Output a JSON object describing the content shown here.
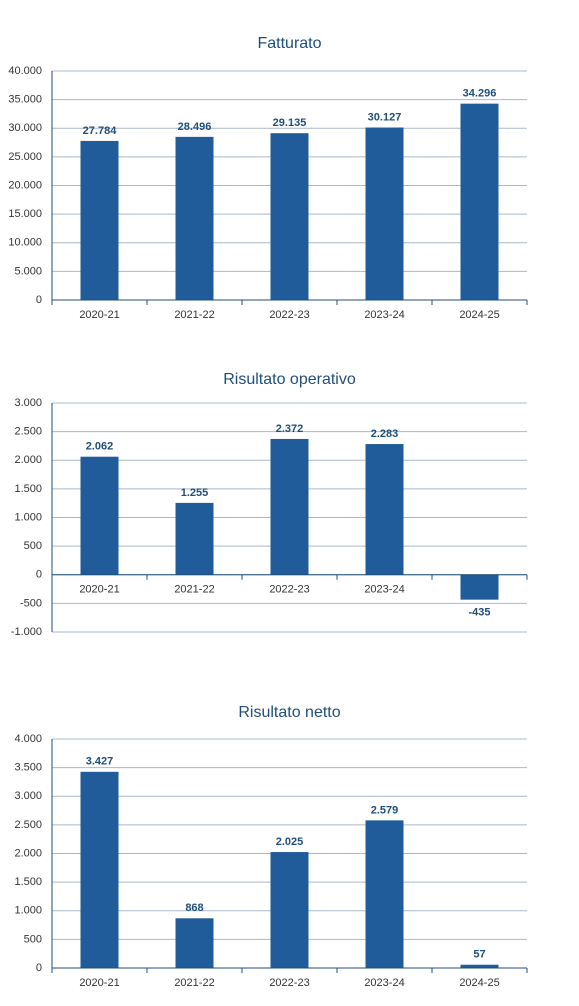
{
  "chart_data": [
    {
      "type": "bar",
      "title": "Fatturato",
      "color": "#1f5c99",
      "grid": true,
      "categories": [
        "2020-21",
        "2021-22",
        "2022-23",
        "2023-24",
        "2024-25"
      ],
      "values": [
        27784,
        28496,
        29135,
        30127,
        34296
      ],
      "value_labels": [
        "27.784",
        "28.496",
        "29.135",
        "30.127",
        "34.296"
      ],
      "ylim": [
        0,
        40000
      ],
      "yticks": [
        0,
        {
          "value": 5000,
          "label": "5.000"
        },
        {
          "value": 10000,
          "label": "10.000"
        },
        {
          "value": 15000,
          "label": "15.000"
        },
        {
          "value": 20000,
          "label": "20.000"
        },
        {
          "value": 25000,
          "label": "25.000"
        },
        {
          "value": 30000,
          "label": "30.000"
        },
        {
          "value": 35000,
          "label": "35.000"
        },
        {
          "value": 40000,
          "label": "40.000"
        }
      ]
    },
    {
      "type": "bar",
      "title": "Risultato operativo",
      "color": "#1f5c99",
      "grid": true,
      "categories": [
        "2020-21",
        "2021-22",
        "2022-23",
        "2023-24",
        null
      ],
      "values": [
        2062,
        1255,
        2372,
        2283,
        -435
      ],
      "value_labels": [
        "2.062",
        "1.255",
        "2.372",
        "2.283",
        "-435"
      ],
      "ylim": [
        -1000,
        3000
      ],
      "yticks": [
        {
          "value": -1000,
          "label": "-1.000"
        },
        -500,
        0,
        500,
        {
          "value": 1000,
          "label": "1.000"
        },
        {
          "value": 1500,
          "label": "1.500"
        },
        {
          "value": 2000,
          "label": "2.000"
        },
        {
          "value": 2500,
          "label": "2.500"
        },
        {
          "value": 3000,
          "label": "3.000"
        }
      ]
    },
    {
      "type": "bar",
      "title": "Risultato netto",
      "color": "#1f5c99",
      "grid": true,
      "categories": [
        "2020-21",
        "2021-22",
        "2022-23",
        "2023-24",
        "2024-25"
      ],
      "values": [
        3427,
        868,
        2025,
        2579,
        57
      ],
      "value_labels": [
        "3.427",
        "868",
        "2.025",
        "2.579",
        "57"
      ],
      "ylim": [
        0,
        4000
      ],
      "yticks": [
        0,
        500,
        {
          "value": 1000,
          "label": "1.000"
        },
        {
          "value": 1500,
          "label": "1.500"
        },
        {
          "value": 2000,
          "label": "2.000"
        },
        {
          "value": 2500,
          "label": "2.500"
        },
        {
          "value": 3000,
          "label": "3.000"
        },
        {
          "value": 3500,
          "label": "3.500"
        },
        {
          "value": 4000,
          "label": "4.000"
        }
      ]
    }
  ]
}
